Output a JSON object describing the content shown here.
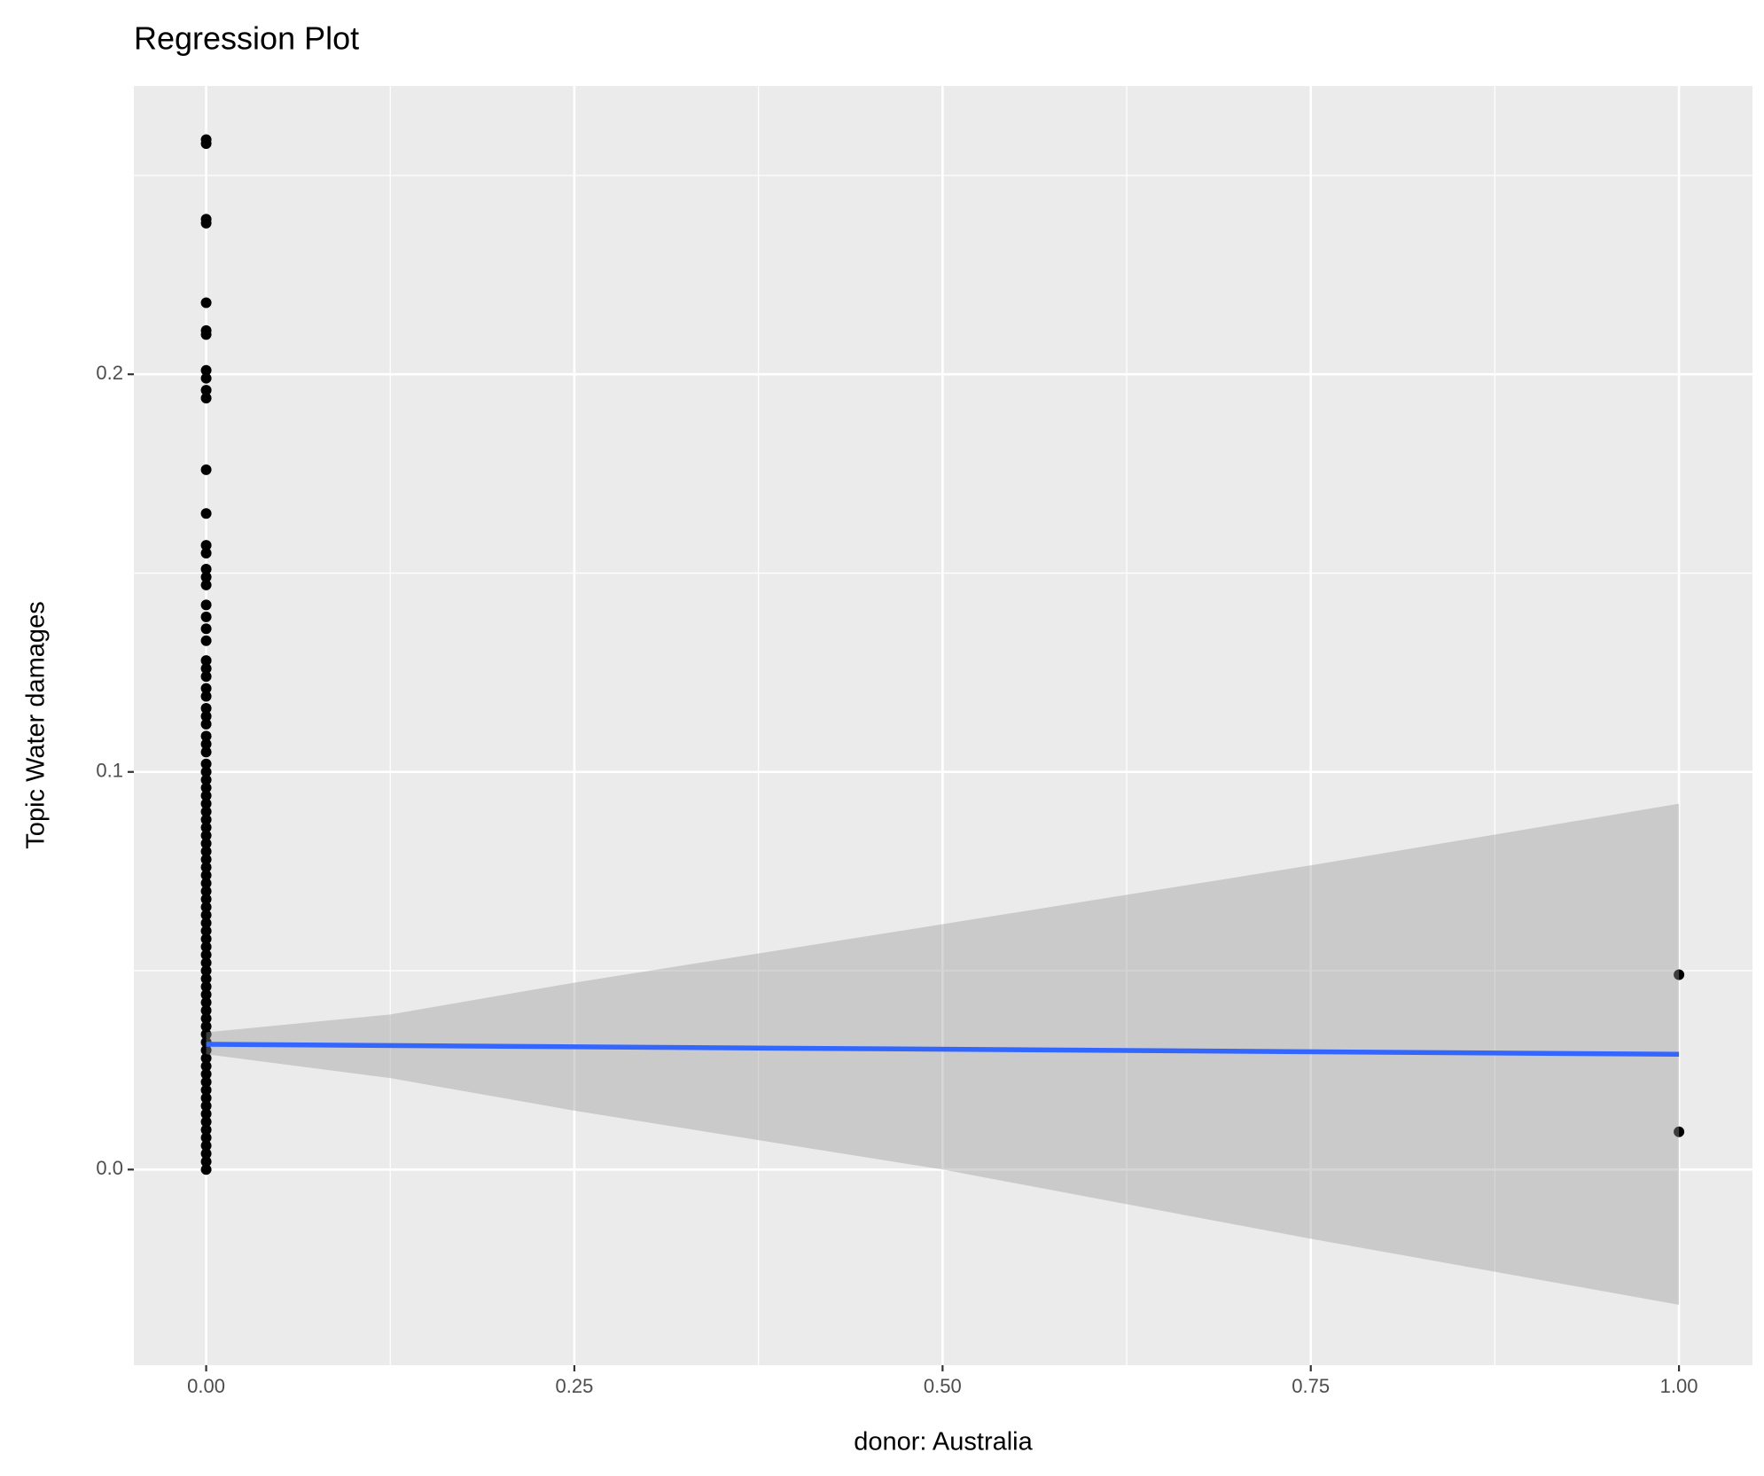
{
  "chart_data": {
    "type": "scatter",
    "title": "Regression Plot",
    "x_label": "donor: Australia",
    "y_label": "Topic Water damages",
    "x": [
      0,
      0,
      0,
      0,
      0,
      0,
      0,
      0,
      0,
      0,
      0,
      0,
      0,
      0,
      0,
      0,
      0,
      0,
      0,
      0,
      0,
      0,
      0,
      0,
      0,
      0,
      0,
      0,
      0,
      0,
      0,
      0,
      0,
      0,
      0,
      0,
      0,
      0,
      0,
      0,
      0,
      0,
      0,
      0,
      0,
      0,
      0,
      0,
      0,
      0,
      0,
      0,
      0,
      0,
      0,
      0,
      0,
      0,
      0,
      0,
      0,
      0,
      0,
      0,
      0,
      0,
      0,
      0,
      0,
      0,
      0,
      0,
      0,
      0,
      0,
      0,
      0,
      0,
      0,
      0,
      0,
      0,
      0,
      0,
      0,
      1,
      1
    ],
    "values": [
      0.259,
      0.258,
      0.239,
      0.238,
      0.218,
      0.211,
      0.21,
      0.201,
      0.199,
      0.196,
      0.194,
      0.176,
      0.165,
      0.157,
      0.155,
      0.151,
      0.149,
      0.147,
      0.142,
      0.139,
      0.136,
      0.133,
      0.128,
      0.126,
      0.124,
      0.121,
      0.119,
      0.116,
      0.114,
      0.112,
      0.109,
      0.107,
      0.105,
      0.102,
      0.1,
      0.098,
      0.096,
      0.094,
      0.092,
      0.09,
      0.088,
      0.086,
      0.084,
      0.082,
      0.08,
      0.078,
      0.076,
      0.074,
      0.072,
      0.07,
      0.068,
      0.066,
      0.064,
      0.062,
      0.06,
      0.058,
      0.056,
      0.054,
      0.052,
      0.05,
      0.048,
      0.046,
      0.044,
      0.042,
      0.04,
      0.038,
      0.036,
      0.034,
      0.032,
      0.03,
      0.028,
      0.026,
      0.024,
      0.022,
      0.02,
      0.018,
      0.016,
      0.014,
      0.012,
      0.01,
      0.008,
      0.006,
      0.004,
      0.002,
      0,
      0.049,
      0.0095
    ],
    "color": "#000000",
    "fit": {
      "x": [
        0,
        1
      ],
      "values": [
        0.0315,
        0.029
      ],
      "color": "#3366ff"
    },
    "band": {
      "x": [
        0,
        0.125,
        0.25,
        0.5,
        0.75,
        1
      ],
      "lower": [
        0.029,
        0.023,
        0.0148,
        0,
        -0.0174,
        -0.034
      ],
      "upper": [
        0.0345,
        0.039,
        0.047,
        0.0617,
        0.0765,
        0.092
      ],
      "color": "#999999"
    },
    "xlim": [
      -0.0491,
      1.0499
    ],
    "ylim": [
      -0.0492,
      0.2725
    ],
    "xticks": [
      {
        "value": 0,
        "label": "0.00"
      },
      {
        "value": 0.25,
        "label": "0.25"
      },
      {
        "value": 0.5,
        "label": "0.50"
      },
      {
        "value": 0.75,
        "label": "0.75"
      },
      {
        "value": 1,
        "label": "1.00"
      }
    ],
    "yticks": [
      {
        "value": 0,
        "label": "0.0"
      },
      {
        "value": 0.1,
        "label": "0.1"
      },
      {
        "value": 0.2,
        "label": "0.2"
      }
    ],
    "xminor": [
      0.125,
      0.375,
      0.625,
      0.875
    ],
    "yminor": [
      0.05,
      0.15,
      0.25
    ],
    "grid": true
  }
}
